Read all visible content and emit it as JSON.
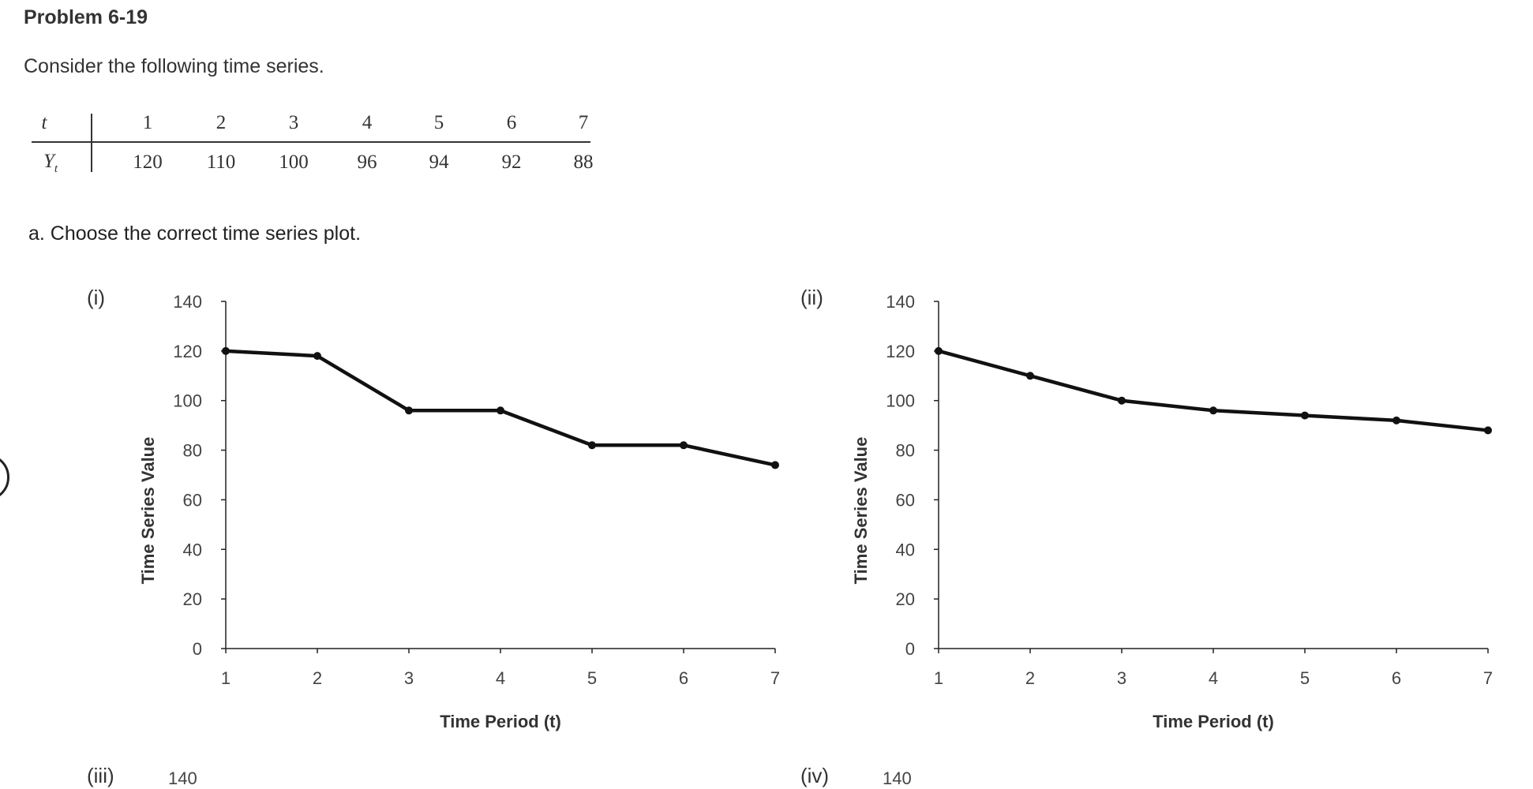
{
  "problem": {
    "title": "Problem 6-19",
    "intro": "Consider the following time series.",
    "question_a": "a. Choose the correct time series plot."
  },
  "table": {
    "row_headers": [
      "t",
      "Y",
      "t"
    ],
    "t_values": [
      "1",
      "2",
      "3",
      "4",
      "5",
      "6",
      "7"
    ],
    "y_values": [
      "120",
      "110",
      "100",
      "96",
      "94",
      "92",
      "88"
    ]
  },
  "options": {
    "labels": [
      "(i)",
      "(ii)",
      "(iii)",
      "(iv)"
    ]
  },
  "chart_data": [
    {
      "type": "line",
      "option": "(i)",
      "x": [
        1,
        2,
        3,
        4,
        5,
        6,
        7
      ],
      "y": [
        120,
        118,
        96,
        96,
        82,
        82,
        74
      ],
      "xlabel": "Time Period (t)",
      "ylabel": "Time Series Value",
      "yticks": [
        0,
        20,
        40,
        60,
        80,
        100,
        120,
        140
      ],
      "xticks": [
        1,
        2,
        3,
        4,
        5,
        6,
        7
      ],
      "ylim": [
        0,
        140
      ],
      "xlim": [
        1,
        7
      ],
      "line_color": "#111111"
    },
    {
      "type": "line",
      "option": "(ii)",
      "x": [
        1,
        2,
        3,
        4,
        5,
        6,
        7
      ],
      "y": [
        120,
        110,
        100,
        96,
        94,
        92,
        88
      ],
      "xlabel": "Time Period (t)",
      "ylabel": "Time Series Value",
      "yticks": [
        0,
        20,
        40,
        60,
        80,
        100,
        120,
        140
      ],
      "xticks": [
        1,
        2,
        3,
        4,
        5,
        6,
        7
      ],
      "ylim": [
        0,
        140
      ],
      "xlim": [
        1,
        7
      ],
      "line_color": "#111111"
    }
  ],
  "partial": {
    "next_ytick": "140"
  }
}
